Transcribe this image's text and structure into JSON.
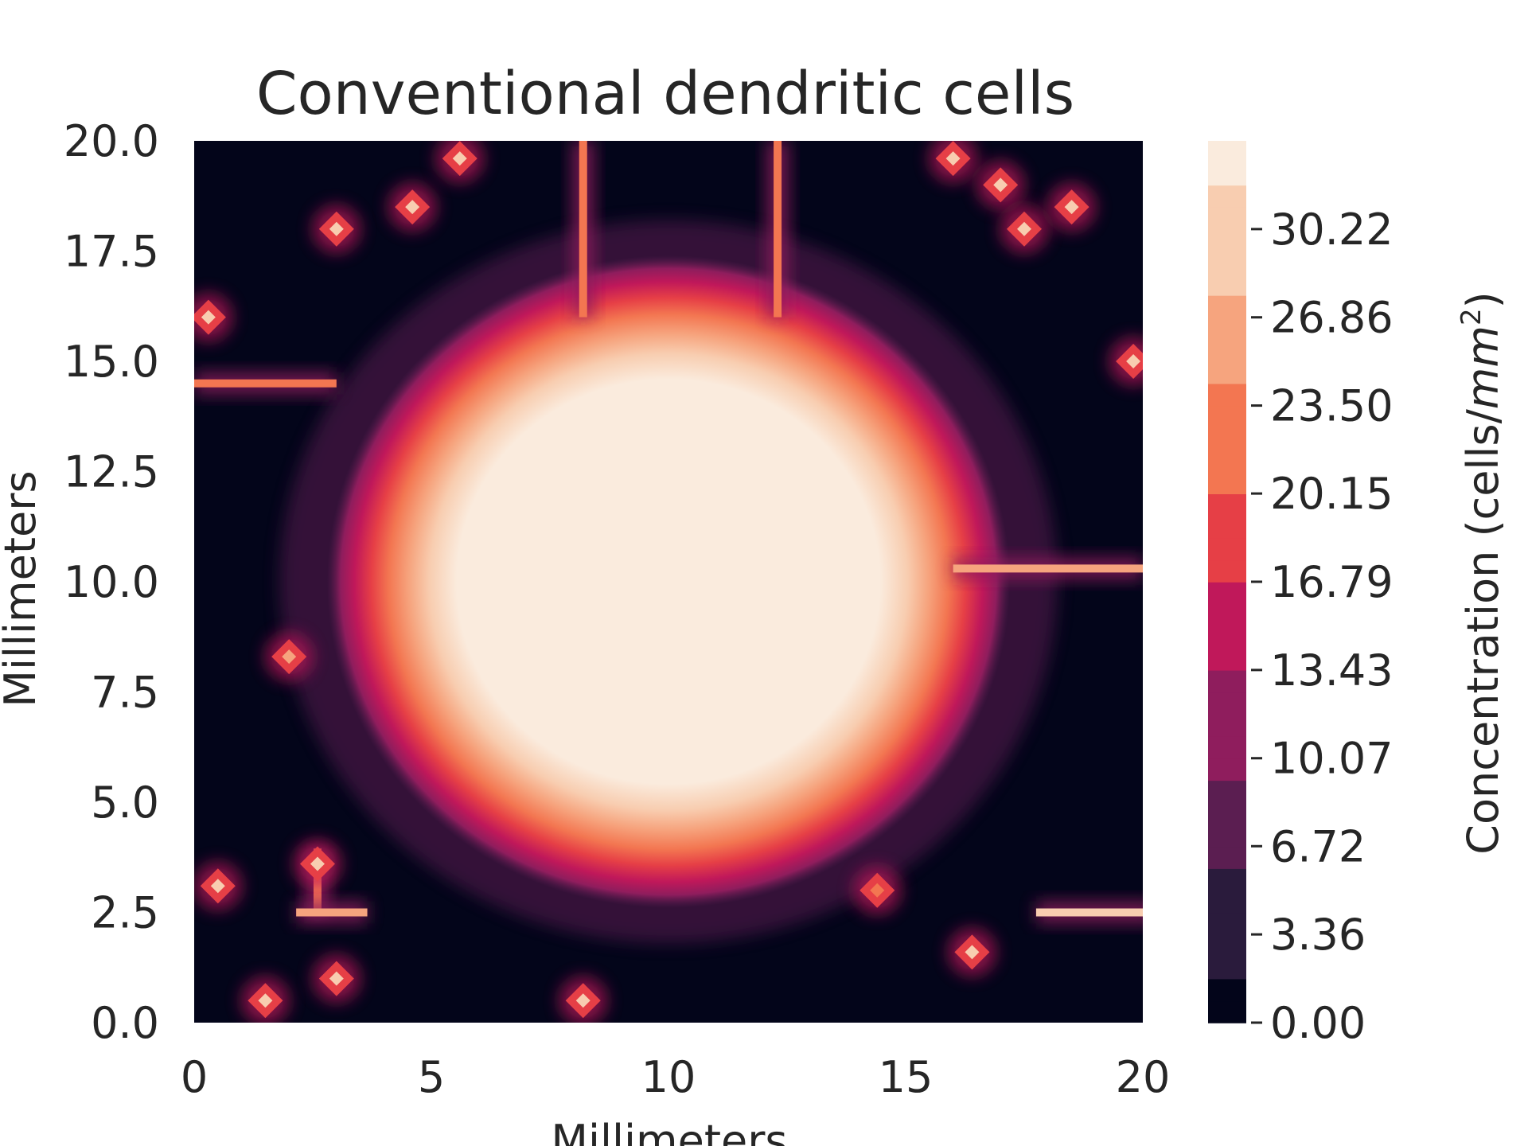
{
  "chart_data": {
    "type": "heatmap",
    "subtype": "filled-contour",
    "title": "Conventional dendritic cells",
    "xlabel": "Millimeters",
    "ylabel": "Millimeters",
    "xlim": [
      0,
      20
    ],
    "ylim": [
      0,
      20
    ],
    "x_ticks": [
      "0",
      "5",
      "10",
      "15",
      "20"
    ],
    "y_ticks": [
      "0.0",
      "2.5",
      "5.0",
      "7.5",
      "10.0",
      "12.5",
      "15.0",
      "17.5",
      "20.0"
    ],
    "grid": false,
    "colormap": "rocket",
    "colorbar": {
      "label": "Concentration (cells/mm²)",
      "label_main": "Concentration (cells/",
      "label_unit": "mm",
      "label_exp": "2",
      "label_close": ")",
      "range": [
        0,
        33.58
      ],
      "ticks": [
        "0.00",
        "3.36",
        "6.72",
        "10.07",
        "13.43",
        "16.79",
        "20.15",
        "23.50",
        "26.86",
        "30.22"
      ],
      "stops": [
        "#03051a",
        "#2a1b3c",
        "#5b1e51",
        "#8f1d5d",
        "#c0185a",
        "#e63f46",
        "#f37651",
        "#f6a47e",
        "#f8cdb0",
        "#faebdd"
      ]
    },
    "field": {
      "core": {
        "cx": 10.0,
        "cy": 10.0,
        "radius": 6.0,
        "value": 33.58
      },
      "ridges": [
        {
          "x": 20.0,
          "y": 10.3,
          "direction": "horizontal",
          "length": 4.0,
          "value": 26
        },
        {
          "x": 0.0,
          "y": 14.5,
          "direction": "horizontal",
          "length": 3.0,
          "value": 24
        },
        {
          "x": 8.2,
          "y": 20.0,
          "direction": "vertical",
          "length": 4.0,
          "value": 24
        },
        {
          "x": 12.3,
          "y": 20.0,
          "direction": "vertical",
          "length": 4.0,
          "value": 24
        },
        {
          "x": 19.0,
          "y": 2.5,
          "direction": "horizontal",
          "length": 2.5,
          "value": 30
        },
        {
          "x": 2.6,
          "y": 3.2,
          "direction": "vertical",
          "length": 1.5,
          "value": 22
        },
        {
          "x": 2.9,
          "y": 2.5,
          "direction": "horizontal",
          "length": 1.5,
          "value": 25
        }
      ],
      "hotspots": [
        {
          "x": 5.6,
          "y": 19.6,
          "value": 30
        },
        {
          "x": 3.0,
          "y": 18.0,
          "value": 28
        },
        {
          "x": 4.6,
          "y": 18.5,
          "value": 30
        },
        {
          "x": 16.0,
          "y": 19.6,
          "value": 30
        },
        {
          "x": 17.0,
          "y": 19.0,
          "value": 30
        },
        {
          "x": 17.5,
          "y": 18.0,
          "value": 30
        },
        {
          "x": 18.5,
          "y": 18.5,
          "value": 30
        },
        {
          "x": 0.3,
          "y": 16.0,
          "value": 30
        },
        {
          "x": 19.8,
          "y": 15.0,
          "value": 30
        },
        {
          "x": 2.0,
          "y": 8.3,
          "value": 26
        },
        {
          "x": 0.5,
          "y": 3.1,
          "value": 30
        },
        {
          "x": 2.6,
          "y": 3.6,
          "value": 30
        },
        {
          "x": 3.0,
          "y": 1.0,
          "value": 30
        },
        {
          "x": 1.5,
          "y": 0.5,
          "value": 30
        },
        {
          "x": 8.2,
          "y": 0.5,
          "value": 30
        },
        {
          "x": 16.4,
          "y": 1.6,
          "value": 30
        },
        {
          "x": 14.4,
          "y": 3.0,
          "value": 22
        }
      ]
    }
  }
}
